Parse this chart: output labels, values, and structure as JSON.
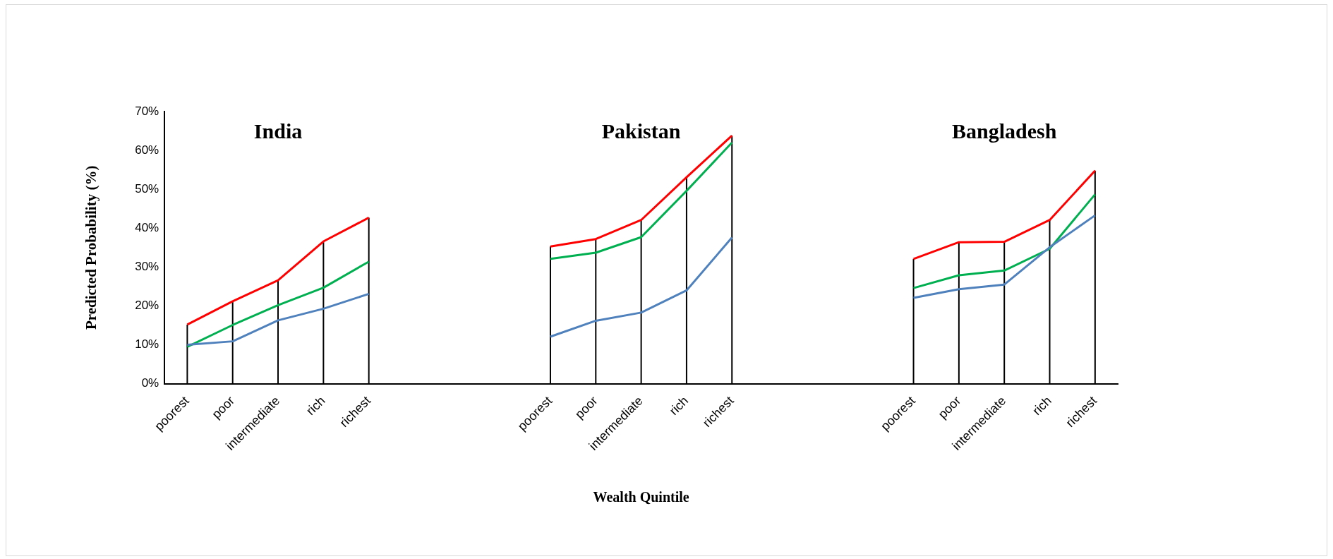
{
  "chart_data": {
    "type": "line",
    "categories": [
      "poorest",
      "poor",
      "intermediate",
      "rich",
      "richest",
      null,
      null,
      null,
      "poorest",
      "poor",
      "intermediate",
      "rich",
      "richest",
      null,
      null,
      null,
      "poorest",
      "poor",
      "intermediate",
      "rich",
      "richest"
    ],
    "series": [
      {
        "color": "#4f81bd",
        "values": [
          10.0,
          10.9,
          16.3,
          19.3,
          23.1,
          null,
          null,
          null,
          12.1,
          16.2,
          18.3,
          24.0,
          37.6,
          null,
          null,
          null,
          22.1,
          24.3,
          25.5,
          35.1,
          43.3
        ]
      },
      {
        "color": "#00b050",
        "values": [
          9.5,
          15.1,
          20.2,
          24.7,
          31.4,
          null,
          null,
          null,
          32.1,
          33.7,
          37.7,
          49.6,
          62.0,
          null,
          null,
          null,
          24.6,
          27.9,
          29.1,
          34.7,
          48.7
        ]
      },
      {
        "color": "#ff0000",
        "values": [
          15.2,
          21.2,
          26.6,
          36.6,
          42.7,
          null,
          null,
          null,
          35.3,
          37.2,
          42.1,
          53.1,
          63.8,
          null,
          null,
          null,
          32.1,
          36.4,
          36.5,
          42.1,
          54.8
        ],
        "errors": [
          [
            0,
            15.2
          ],
          [
            0,
            21.2
          ],
          [
            0,
            26.6
          ],
          [
            0,
            36.6
          ],
          [
            0,
            42.7
          ],
          null,
          null,
          null,
          [
            0,
            35.3
          ],
          [
            0,
            37.2
          ],
          [
            0,
            42.1
          ],
          [
            0,
            53.1
          ],
          [
            0,
            63.8
          ],
          null,
          null,
          null,
          [
            0,
            32.1
          ],
          [
            0,
            36.4
          ],
          [
            0,
            36.5
          ],
          [
            0,
            42.1
          ],
          [
            0,
            54.8
          ]
        ]
      }
    ],
    "ylim": [
      0,
      70
    ],
    "yticks": [
      {
        "value": 0,
        "label": "0%"
      },
      {
        "value": 10,
        "label": "10%"
      },
      {
        "value": 20,
        "label": "20%"
      },
      {
        "value": 30,
        "label": "30%"
      },
      {
        "value": 40,
        "label": "40%"
      },
      {
        "value": 50,
        "label": "50%"
      },
      {
        "value": 60,
        "label": "60%"
      },
      {
        "value": 70,
        "label": "70%"
      }
    ],
    "xlabel": "Wealth Quintile",
    "ylabel": "Predicted Probability (%)",
    "annotations": [
      "India",
      "Pakistan",
      "Bangladesh"
    ],
    "grid": false,
    "legend": false,
    "marker": "none",
    "line_style": "solid"
  }
}
